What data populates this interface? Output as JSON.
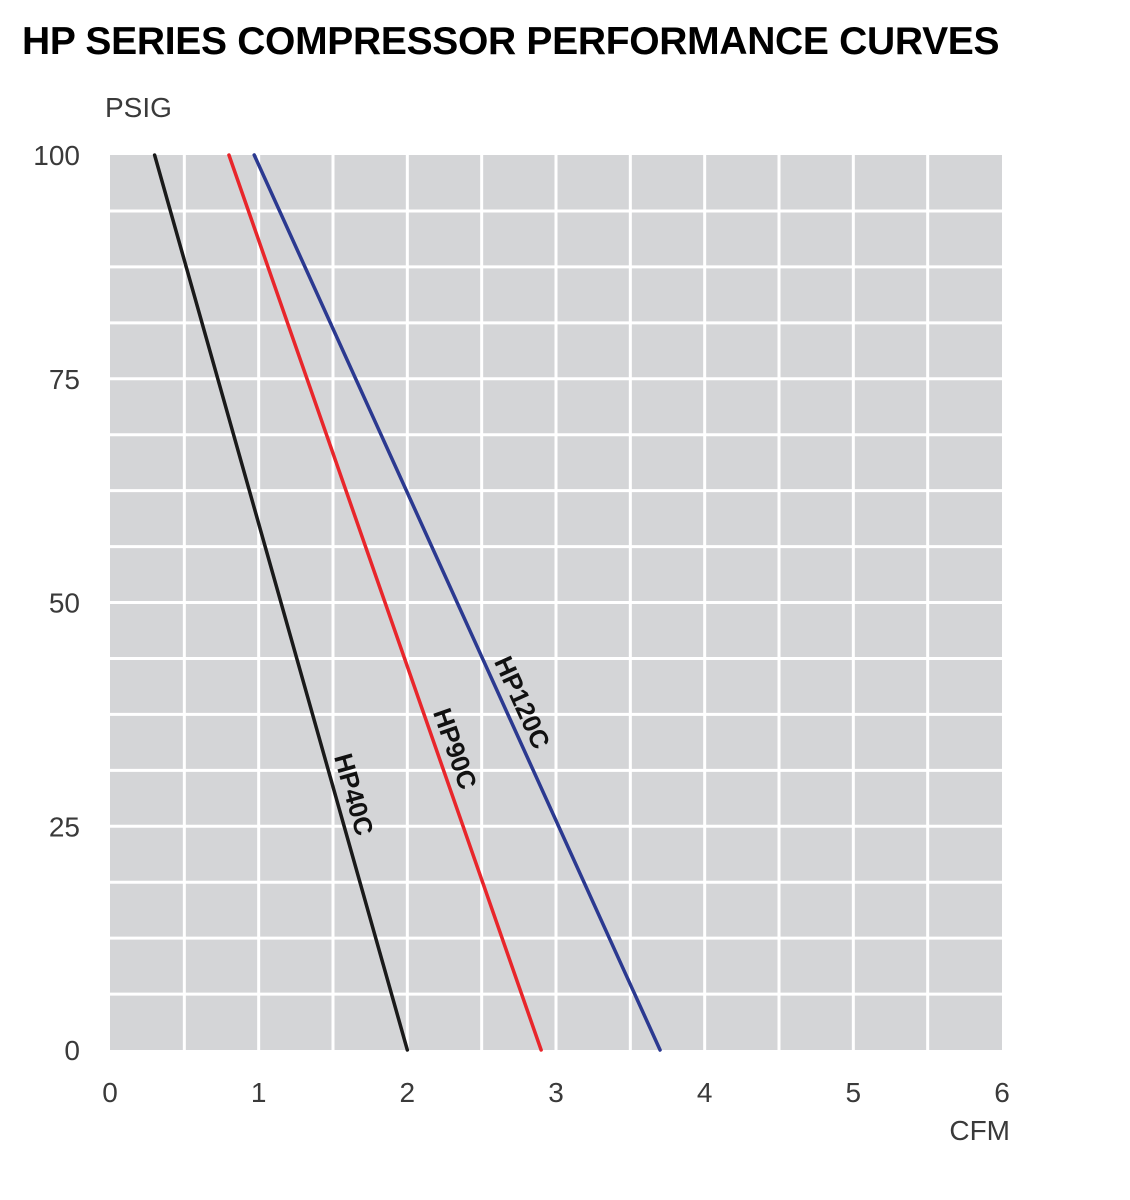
{
  "chart_data": {
    "type": "line",
    "title": "HP SERIES COMPRESSOR PERFORMANCE CURVES",
    "xlabel": "CFM",
    "ylabel": "PSIG",
    "xlim": [
      0,
      6
    ],
    "ylim": [
      0,
      100
    ],
    "x_ticks": [
      "0",
      "1",
      "2",
      "3",
      "4",
      "5",
      "6"
    ],
    "y_ticks": [
      "0",
      "25",
      "50",
      "75",
      "100"
    ],
    "grid": true,
    "background": "#d4d5d7",
    "series": [
      {
        "name": "HP40C",
        "color": "#1a1a1a",
        "points": [
          [
            0.3,
            100
          ],
          [
            2.0,
            0
          ]
        ]
      },
      {
        "name": "HP90C",
        "color": "#e8262b",
        "points": [
          [
            0.8,
            100
          ],
          [
            2.9,
            0
          ]
        ]
      },
      {
        "name": "HP120C",
        "color": "#2b3990",
        "points": [
          [
            0.97,
            100
          ],
          [
            3.7,
            0
          ]
        ]
      }
    ]
  }
}
